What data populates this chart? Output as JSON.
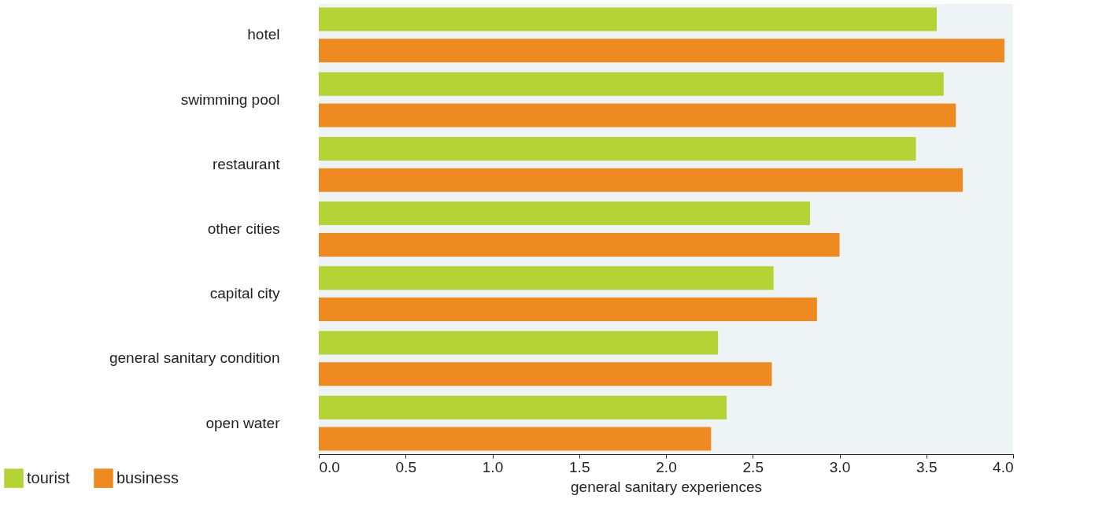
{
  "chart_data": {
    "type": "bar",
    "orientation": "horizontal",
    "xlabel": "general sanitary experiences",
    "categories": [
      "hotel",
      "swimming pool",
      "restaurant",
      "other cities",
      "capital city",
      "general sanitary condition",
      "open water"
    ],
    "series": [
      {
        "name": "tourist",
        "color": "#b5d334",
        "values": [
          3.56,
          3.6,
          3.44,
          2.83,
          2.62,
          2.3,
          2.35
        ]
      },
      {
        "name": "business",
        "color": "#ee8a1f",
        "values": [
          3.95,
          3.67,
          3.71,
          3.0,
          2.87,
          2.61,
          2.26
        ]
      }
    ],
    "xlim": [
      0,
      4
    ],
    "xticks": [
      {
        "value": 0,
        "label": "0.0"
      },
      0.5,
      {
        "value": 1,
        "label": "1.0"
      },
      1.5,
      {
        "value": 2,
        "label": "2.0"
      },
      2.5,
      {
        "value": 3,
        "label": "3.0"
      },
      3.5,
      {
        "value": 4,
        "label": "4.0"
      }
    ],
    "legend": "bottom left",
    "grid": false
  }
}
